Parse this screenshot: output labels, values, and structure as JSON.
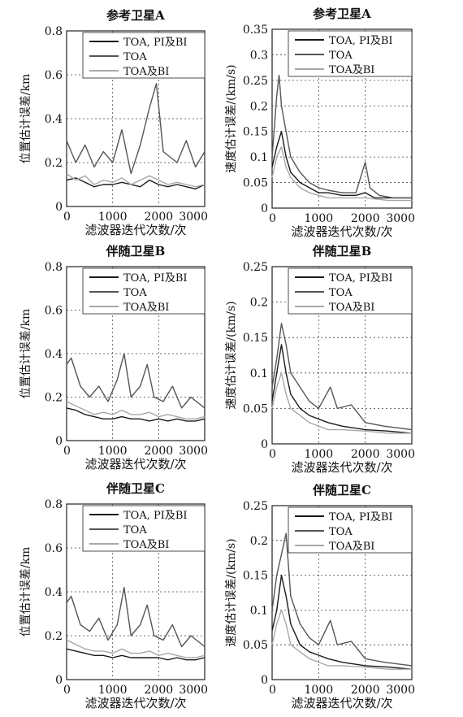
{
  "colors": {
    "TOA, PI及BI": "#1a1a1a",
    "TOA": "#555555",
    "TOA及BI": "#a8a8a8"
  },
  "chart_data": [
    {
      "type": "line",
      "title": "参考卫星A",
      "xlabel": "滤波器迭代次数/次",
      "ylabel": "位置估计误差/km",
      "xlim": [
        0,
        3000
      ],
      "ylim": [
        0,
        0.8
      ],
      "xticks": [
        "0",
        "1000",
        "2000",
        "3000"
      ],
      "yticks": [
        "0",
        "0.2",
        "0.4",
        "0.6",
        "0.8"
      ],
      "grid": true,
      "legend_position": "top-right",
      "series": [
        {
          "name": "TOA, PI及BI",
          "x": [
            0,
            200,
            400,
            600,
            800,
            1000,
            1200,
            1400,
            1600,
            1800,
            2000,
            2200,
            2400,
            2600,
            2800,
            3000
          ],
          "y": [
            0.12,
            0.13,
            0.11,
            0.09,
            0.1,
            0.1,
            0.11,
            0.1,
            0.09,
            0.12,
            0.1,
            0.09,
            0.1,
            0.09,
            0.08,
            0.1
          ]
        },
        {
          "name": "TOA",
          "x": [
            0,
            200,
            400,
            600,
            800,
            1000,
            1200,
            1400,
            1600,
            1800,
            1950,
            2100,
            2400,
            2600,
            2800,
            3000
          ],
          "y": [
            0.3,
            0.2,
            0.28,
            0.18,
            0.25,
            0.2,
            0.35,
            0.15,
            0.28,
            0.45,
            0.56,
            0.25,
            0.2,
            0.3,
            0.18,
            0.25
          ]
        },
        {
          "name": "TOA及BI",
          "x": [
            0,
            200,
            400,
            600,
            800,
            1000,
            1200,
            1400,
            1600,
            1800,
            2000,
            2200,
            2400,
            2600,
            2800,
            3000
          ],
          "y": [
            0.15,
            0.12,
            0.14,
            0.1,
            0.12,
            0.11,
            0.13,
            0.1,
            0.12,
            0.14,
            0.12,
            0.1,
            0.11,
            0.1,
            0.09,
            0.1
          ]
        }
      ]
    },
    {
      "type": "line",
      "title": "参考卫星A",
      "xlabel": "滤波器迭代次数/次",
      "ylabel": "速度估计误差/(km/s)",
      "xlim": [
        0,
        3000
      ],
      "ylim": [
        0,
        0.35
      ],
      "xticks": [
        "0",
        "1000",
        "2000",
        "3000"
      ],
      "yticks": [
        "0",
        "0.05",
        "0.1",
        "0.15",
        "0.2",
        "0.25",
        "0.3",
        "0.35"
      ],
      "grid": true,
      "legend_position": "top-right",
      "series": [
        {
          "name": "TOA, PI及BI",
          "x": [
            0,
            100,
            200,
            300,
            400,
            600,
            800,
            1000,
            1200,
            1500,
            1800,
            2000,
            2200,
            2500,
            3000
          ],
          "y": [
            0.08,
            0.12,
            0.15,
            0.1,
            0.07,
            0.05,
            0.04,
            0.03,
            0.03,
            0.025,
            0.025,
            0.03,
            0.02,
            0.02,
            0.02
          ]
        },
        {
          "name": "TOA",
          "x": [
            0,
            100,
            150,
            200,
            300,
            400,
            600,
            800,
            1000,
            1200,
            1500,
            1800,
            2000,
            2100,
            2300,
            2600,
            3000
          ],
          "y": [
            0.1,
            0.22,
            0.26,
            0.2,
            0.15,
            0.1,
            0.07,
            0.05,
            0.04,
            0.035,
            0.03,
            0.03,
            0.09,
            0.04,
            0.025,
            0.02,
            0.02
          ]
        },
        {
          "name": "TOA及BI",
          "x": [
            0,
            100,
            200,
            300,
            400,
            600,
            800,
            1000,
            1200,
            1500,
            2000,
            2500,
            3000
          ],
          "y": [
            0.06,
            0.1,
            0.12,
            0.08,
            0.06,
            0.04,
            0.03,
            0.025,
            0.02,
            0.02,
            0.02,
            0.015,
            0.015
          ]
        }
      ]
    },
    {
      "type": "line",
      "title": "伴随卫星B",
      "xlabel": "滤波器迭代次数/次",
      "ylabel": "位置估计误差/km",
      "xlim": [
        0,
        3000
      ],
      "ylim": [
        0,
        0.8
      ],
      "xticks": [
        "0",
        "1000",
        "2000",
        "3000"
      ],
      "yticks": [
        "0",
        "0.2",
        "0.4",
        "0.6",
        "0.8"
      ],
      "grid": true,
      "legend_position": "top-right",
      "series": [
        {
          "name": "TOA, PI及BI",
          "x": [
            0,
            200,
            400,
            600,
            800,
            1000,
            1200,
            1400,
            1600,
            1800,
            2000,
            2200,
            2400,
            2600,
            2800,
            3000
          ],
          "y": [
            0.15,
            0.14,
            0.12,
            0.11,
            0.1,
            0.1,
            0.11,
            0.1,
            0.1,
            0.09,
            0.1,
            0.09,
            0.1,
            0.09,
            0.09,
            0.1
          ]
        },
        {
          "name": "TOA",
          "x": [
            0,
            100,
            300,
            500,
            700,
            900,
            1100,
            1250,
            1400,
            1600,
            1750,
            1900,
            2100,
            2300,
            2500,
            2700,
            3000
          ],
          "y": [
            0.35,
            0.38,
            0.25,
            0.2,
            0.25,
            0.18,
            0.28,
            0.4,
            0.2,
            0.25,
            0.35,
            0.2,
            0.18,
            0.25,
            0.15,
            0.2,
            0.15
          ]
        },
        {
          "name": "TOA及BI",
          "x": [
            0,
            200,
            400,
            600,
            800,
            1000,
            1200,
            1400,
            1600,
            1800,
            2000,
            2200,
            2400,
            2600,
            2800,
            3000
          ],
          "y": [
            0.18,
            0.16,
            0.14,
            0.12,
            0.13,
            0.12,
            0.14,
            0.12,
            0.12,
            0.13,
            0.11,
            0.12,
            0.11,
            0.1,
            0.1,
            0.11
          ]
        }
      ]
    },
    {
      "type": "line",
      "title": "伴随卫星B",
      "xlabel": "滤波器迭代次数/次",
      "ylabel": "速度估计误差/(km/s)",
      "xlim": [
        0,
        3000
      ],
      "ylim": [
        0,
        0.25
      ],
      "xticks": [
        "0",
        "1000",
        "2000",
        "3000"
      ],
      "yticks": [
        "0",
        "0.05",
        "0.1",
        "0.15",
        "0.2",
        "0.25"
      ],
      "grid": true,
      "legend_position": "top-right",
      "series": [
        {
          "name": "TOA, PI及BI",
          "x": [
            0,
            100,
            200,
            300,
            400,
            600,
            800,
            1000,
            1200,
            1500,
            2000,
            2500,
            3000
          ],
          "y": [
            0.06,
            0.1,
            0.14,
            0.1,
            0.07,
            0.05,
            0.04,
            0.035,
            0.03,
            0.025,
            0.02,
            0.018,
            0.015
          ]
        },
        {
          "name": "TOA",
          "x": [
            0,
            100,
            200,
            300,
            400,
            600,
            800,
            1000,
            1250,
            1400,
            1700,
            2000,
            2400,
            3000
          ],
          "y": [
            0.08,
            0.12,
            0.17,
            0.14,
            0.1,
            0.08,
            0.06,
            0.05,
            0.08,
            0.05,
            0.055,
            0.03,
            0.025,
            0.02
          ]
        },
        {
          "name": "TOA及BI",
          "x": [
            0,
            100,
            200,
            300,
            400,
            600,
            800,
            1000,
            1200,
            1500,
            2000,
            2500,
            3000
          ],
          "y": [
            0.05,
            0.08,
            0.1,
            0.07,
            0.05,
            0.04,
            0.03,
            0.025,
            0.02,
            0.02,
            0.018,
            0.015,
            0.015
          ]
        }
      ]
    },
    {
      "type": "line",
      "title": "伴随卫星C",
      "xlabel": "滤波器迭代次数/次",
      "ylabel": "位置估计误差/km",
      "xlim": [
        0,
        3000
      ],
      "ylim": [
        0,
        0.8
      ],
      "xticks": [
        "0",
        "1000",
        "2000",
        "3000"
      ],
      "yticks": [
        "0",
        "0.2",
        "0.4",
        "0.6",
        "0.8"
      ],
      "grid": true,
      "legend_position": "top-right",
      "series": [
        {
          "name": "TOA, PI及BI",
          "x": [
            0,
            200,
            400,
            600,
            800,
            1000,
            1200,
            1400,
            1600,
            1800,
            2000,
            2200,
            2400,
            2600,
            2800,
            3000
          ],
          "y": [
            0.14,
            0.13,
            0.12,
            0.11,
            0.11,
            0.1,
            0.11,
            0.1,
            0.1,
            0.1,
            0.1,
            0.09,
            0.1,
            0.09,
            0.09,
            0.1
          ]
        },
        {
          "name": "TOA",
          "x": [
            0,
            100,
            300,
            500,
            700,
            900,
            1100,
            1250,
            1400,
            1600,
            1750,
            1900,
            2100,
            2300,
            2500,
            2700,
            3000
          ],
          "y": [
            0.35,
            0.38,
            0.25,
            0.22,
            0.28,
            0.18,
            0.25,
            0.42,
            0.2,
            0.25,
            0.34,
            0.2,
            0.18,
            0.25,
            0.15,
            0.2,
            0.15
          ]
        },
        {
          "name": "TOA及BI",
          "x": [
            0,
            200,
            400,
            600,
            800,
            1000,
            1200,
            1400,
            1600,
            1800,
            2000,
            2200,
            2400,
            2600,
            2800,
            3000
          ],
          "y": [
            0.18,
            0.16,
            0.14,
            0.13,
            0.13,
            0.12,
            0.14,
            0.12,
            0.12,
            0.13,
            0.11,
            0.12,
            0.11,
            0.1,
            0.1,
            0.11
          ]
        }
      ]
    },
    {
      "type": "line",
      "title": "伴随卫星C",
      "xlabel": "滤波器迭代次数/次",
      "ylabel": "速度估计误差/(km/s)",
      "xlim": [
        0,
        3000
      ],
      "ylim": [
        0,
        0.25
      ],
      "xticks": [
        "0",
        "1000",
        "2000",
        "3000"
      ],
      "yticks": [
        "0",
        "0.05",
        "0.1",
        "0.15",
        "0.2",
        "0.25"
      ],
      "grid": true,
      "legend_position": "top-right",
      "series": [
        {
          "name": "TOA, PI及BI",
          "x": [
            0,
            100,
            200,
            300,
            400,
            600,
            800,
            1000,
            1200,
            1500,
            2000,
            2500,
            3000
          ],
          "y": [
            0.07,
            0.1,
            0.15,
            0.12,
            0.08,
            0.05,
            0.04,
            0.035,
            0.03,
            0.025,
            0.02,
            0.018,
            0.015
          ]
        },
        {
          "name": "TOA",
          "x": [
            0,
            100,
            200,
            300,
            400,
            600,
            800,
            1000,
            1250,
            1400,
            1700,
            2000,
            2400,
            3000
          ],
          "y": [
            0.1,
            0.15,
            0.18,
            0.21,
            0.12,
            0.08,
            0.06,
            0.05,
            0.085,
            0.05,
            0.055,
            0.03,
            0.025,
            0.02
          ]
        },
        {
          "name": "TOA及BI",
          "x": [
            0,
            100,
            200,
            300,
            400,
            600,
            800,
            1000,
            1200,
            1500,
            2000,
            2500,
            3000
          ],
          "y": [
            0.05,
            0.08,
            0.1,
            0.08,
            0.05,
            0.04,
            0.03,
            0.025,
            0.02,
            0.02,
            0.018,
            0.015,
            0.015
          ]
        }
      ]
    }
  ]
}
